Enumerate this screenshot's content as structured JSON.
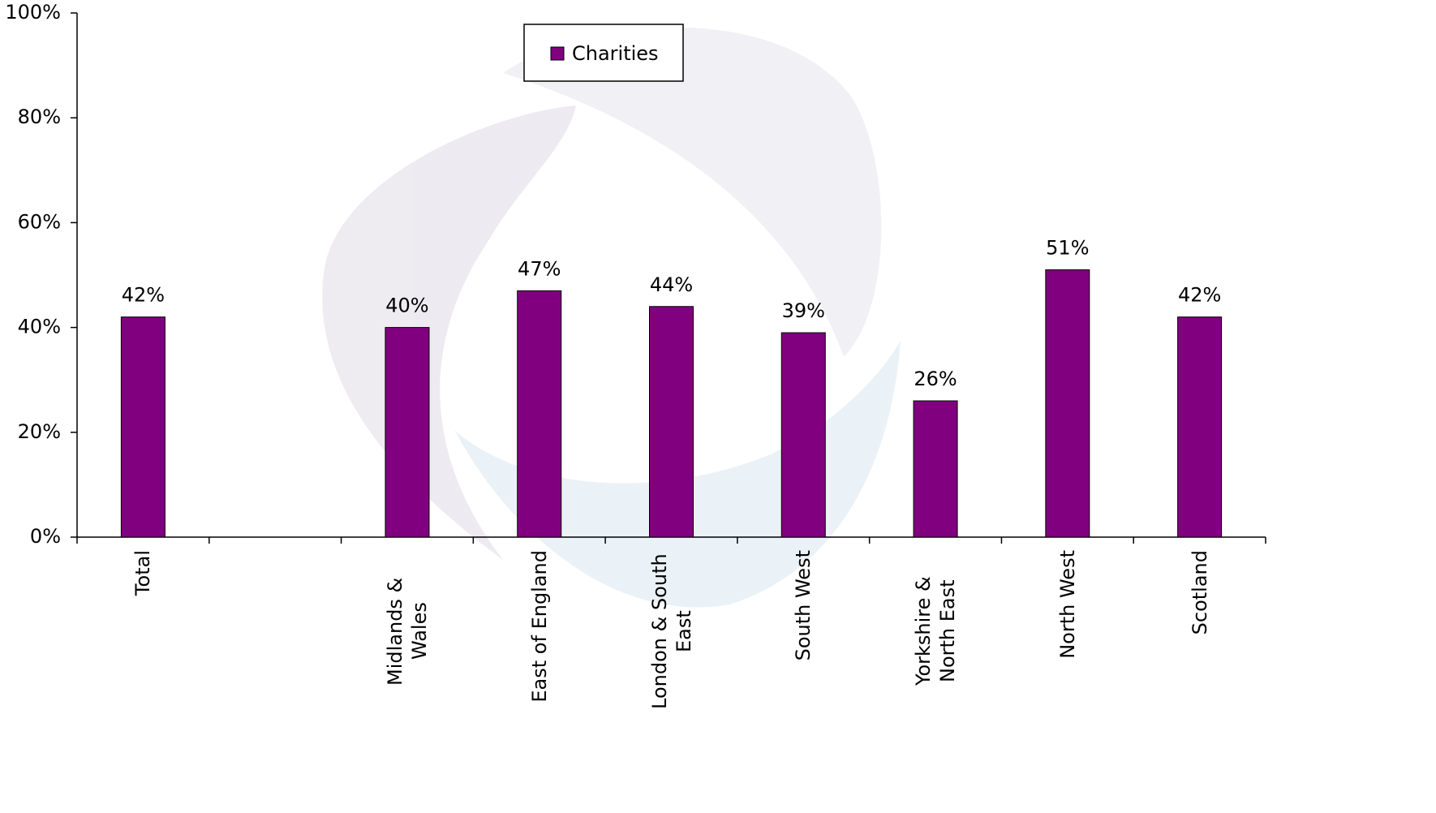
{
  "chart_data": {
    "type": "bar",
    "categories": [
      "Total",
      null,
      "Midlands & Wales",
      "East of England",
      "London & South East",
      "South West",
      "Yorkshire & North East",
      "North West",
      "Scotland"
    ],
    "series": [
      {
        "name": "Charities",
        "color": "#800080",
        "values": [
          42,
          null,
          40,
          47,
          44,
          39,
          26,
          51,
          42
        ],
        "value_labels": [
          "42%",
          null,
          "40%",
          "47%",
          "44%",
          "39%",
          "26%",
          "51%",
          "42%"
        ]
      }
    ],
    "ylim": [
      0,
      100
    ],
    "yticks": [
      {
        "value": 0,
        "label": "0%"
      },
      {
        "value": 20,
        "label": "20%"
      },
      {
        "value": 40,
        "label": "40%"
      },
      {
        "value": 60,
        "label": "60%"
      },
      {
        "value": 80,
        "label": "80%"
      },
      {
        "value": 100,
        "label": "100%"
      }
    ],
    "grid": false,
    "legend": "top"
  }
}
